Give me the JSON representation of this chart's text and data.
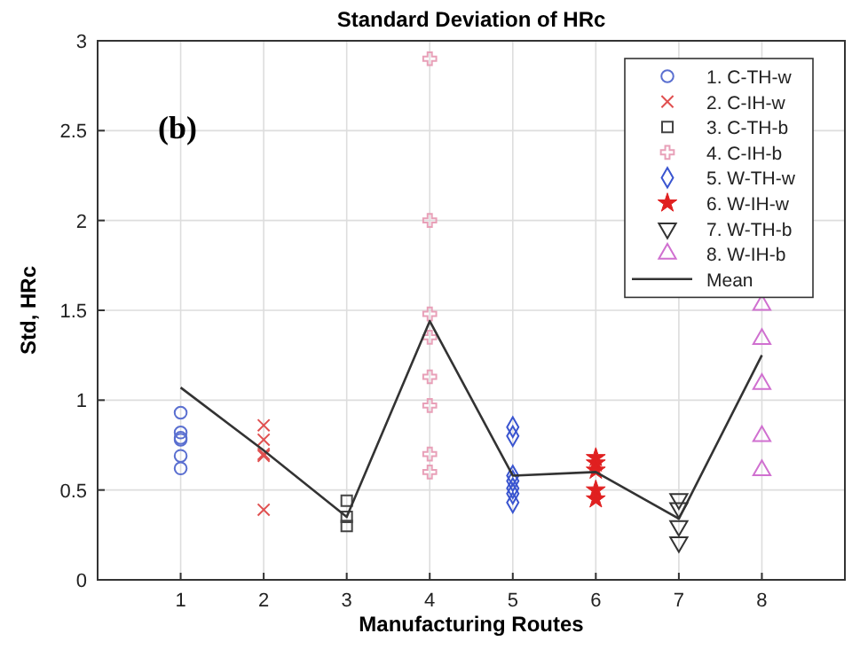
{
  "chart_data": {
    "type": "scatter",
    "title": "Standard Deviation of HRc",
    "xlabel": "Manufacturing Routes",
    "ylabel": "Std, HRc",
    "annotations": [
      "(b)"
    ],
    "xlim": [
      0,
      9
    ],
    "xticks": [
      1,
      2,
      3,
      4,
      5,
      6,
      7,
      8
    ],
    "ylim": [
      0,
      3
    ],
    "yticks": [
      0,
      0.5,
      1,
      1.5,
      2,
      2.5,
      3
    ],
    "grid": true,
    "legend": "top right",
    "series": [
      {
        "name": "1. C-TH-w",
        "color": "#5a6fd0",
        "marker": "circle",
        "x": [
          1,
          1,
          1,
          1,
          1,
          1
        ],
        "values": [
          0.93,
          0.82,
          0.79,
          0.78,
          0.69,
          0.62
        ]
      },
      {
        "name": "2. C-IH-w",
        "color": "#e05050",
        "marker": "x",
        "x": [
          2,
          2,
          2,
          2,
          2
        ],
        "values": [
          0.86,
          0.78,
          0.7,
          0.69,
          0.39
        ]
      },
      {
        "name": "3. C-TH-b",
        "color": "#444444",
        "marker": "square",
        "x": [
          3,
          3,
          3
        ],
        "values": [
          0.44,
          0.35,
          0.3
        ]
      },
      {
        "name": "4. C-IH-b",
        "color": "#e8a0b8",
        "marker": "cross",
        "x": [
          4,
          4,
          4,
          4,
          4,
          4,
          4,
          4
        ],
        "values": [
          2.9,
          2.0,
          1.48,
          1.35,
          1.13,
          0.97,
          0.7,
          0.6
        ]
      },
      {
        "name": "5. W-TH-w",
        "color": "#3a55d0",
        "marker": "diamond",
        "x": [
          5,
          5,
          5,
          5,
          5,
          5,
          5
        ],
        "values": [
          0.85,
          0.8,
          0.58,
          0.55,
          0.51,
          0.48,
          0.43
        ]
      },
      {
        "name": "6. W-IH-w",
        "color": "#e02020",
        "marker": "star",
        "x": [
          6,
          6,
          6,
          6,
          6
        ],
        "values": [
          0.68,
          0.65,
          0.61,
          0.5,
          0.45
        ]
      },
      {
        "name": "7. W-TH-b",
        "color": "#333333",
        "marker": "triangle-down",
        "x": [
          7,
          7,
          7,
          7
        ],
        "values": [
          0.45,
          0.4,
          0.3,
          0.21
        ]
      },
      {
        "name": "8. W-IH-b",
        "color": "#d070d0",
        "marker": "triangle",
        "x": [
          8,
          8,
          8,
          8,
          8
        ],
        "values": [
          1.53,
          1.34,
          1.09,
          0.8,
          0.61
        ]
      },
      {
        "name": "Mean",
        "type": "line",
        "color": "#333333",
        "line_style": "solid",
        "x": [
          1,
          2,
          3,
          4,
          5,
          6,
          7,
          8
        ],
        "values": [
          1.07,
          0.72,
          0.35,
          1.44,
          0.58,
          0.6,
          0.34,
          1.25
        ]
      }
    ]
  }
}
